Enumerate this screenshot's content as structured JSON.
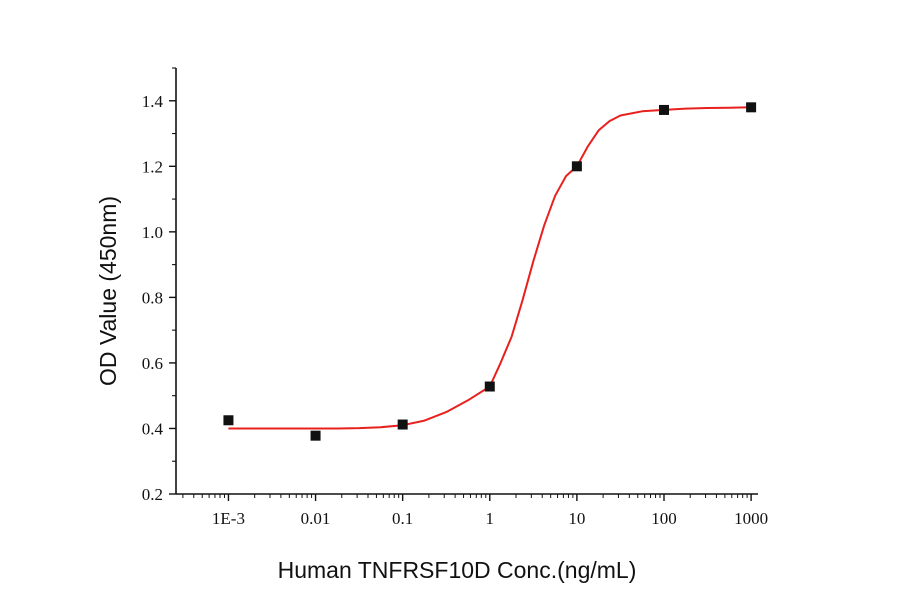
{
  "chart_data": {
    "type": "scatter",
    "title": "",
    "xlabel": "Human TNFRSF10D Conc.(ng/mL)",
    "ylabel": "OD Value (450nm)",
    "x_scale": "log",
    "xlim": [
      0.00025,
      1200
    ],
    "ylim": [
      0.2,
      1.5
    ],
    "x_ticks": [
      0.001,
      0.01,
      0.1,
      1,
      10,
      100,
      1000
    ],
    "x_tick_labels": [
      "1E-3",
      "0.01",
      "0.1",
      "1",
      "10",
      "100",
      "1000"
    ],
    "y_ticks": [
      0.2,
      0.4,
      0.6,
      0.8,
      1.0,
      1.2,
      1.4
    ],
    "y_tick_labels": [
      "0.2",
      "0.4",
      "0.6",
      "0.8",
      "1.0",
      "1.2",
      "1.4"
    ],
    "grid": false,
    "legend": "none",
    "series": [
      {
        "type": "scatter",
        "marker": "square",
        "color": "#111111",
        "x": [
          0.001,
          0.01,
          0.1,
          1,
          10,
          100,
          1000
        ],
        "y": [
          0.425,
          0.378,
          0.412,
          0.528,
          1.2,
          1.372,
          1.38
        ]
      },
      {
        "type": "line",
        "color": "#e8201e",
        "x": [
          0.001,
          0.00178,
          0.00316,
          0.00562,
          0.01,
          0.0178,
          0.0316,
          0.0562,
          0.1,
          0.178,
          0.316,
          0.562,
          1,
          1.33,
          1.78,
          2.37,
          3.16,
          4.22,
          5.62,
          7.5,
          10,
          13.3,
          17.8,
          23.7,
          31.6,
          56.2,
          100,
          178,
          316,
          562,
          1000
        ],
        "y": [
          0.4,
          0.4,
          0.4,
          0.4,
          0.4,
          0.4,
          0.401,
          0.404,
          0.41,
          0.424,
          0.45,
          0.486,
          0.528,
          0.6,
          0.68,
          0.79,
          0.91,
          1.02,
          1.11,
          1.17,
          1.2,
          1.26,
          1.31,
          1.338,
          1.355,
          1.368,
          1.372,
          1.376,
          1.378,
          1.379,
          1.38
        ]
      }
    ]
  }
}
